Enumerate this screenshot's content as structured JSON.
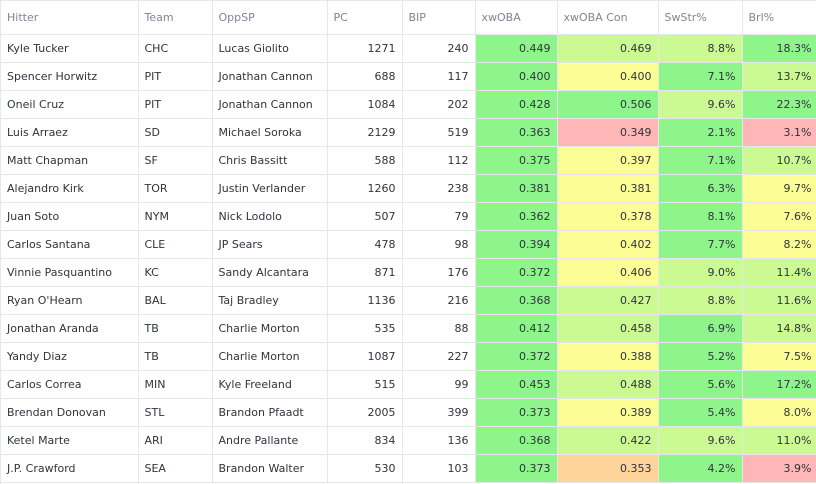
{
  "colors": {
    "green": "#8ef58b",
    "light_green": "#cafa91",
    "yellow": "#fdfd95",
    "orange": "#fed49a",
    "red": "#ffb6b6"
  },
  "table": {
    "columns": [
      "Hitter",
      "Team",
      "OppSP",
      "PC",
      "BIP",
      "xwOBA",
      "xwOBA Con",
      "SwStr%",
      "Brl%"
    ],
    "rows": [
      {
        "cells": [
          "Kyle Tucker",
          "CHC",
          "Lucas Giolito",
          "1271",
          "240",
          "0.449",
          "0.469",
          "8.8%",
          "18.3%"
        ],
        "colors": [
          "green",
          "light_green",
          "light_green",
          "green"
        ]
      },
      {
        "cells": [
          "Spencer Horwitz",
          "PIT",
          "Jonathan Cannon",
          "688",
          "117",
          "0.400",
          "0.400",
          "7.1%",
          "13.7%"
        ],
        "colors": [
          "green",
          "yellow",
          "green",
          "light_green"
        ]
      },
      {
        "cells": [
          "Oneil Cruz",
          "PIT",
          "Jonathan Cannon",
          "1084",
          "202",
          "0.428",
          "0.506",
          "9.6%",
          "22.3%"
        ],
        "colors": [
          "green",
          "green",
          "light_green",
          "green"
        ]
      },
      {
        "cells": [
          "Luis Arraez",
          "SD",
          "Michael Soroka",
          "2129",
          "519",
          "0.363",
          "0.349",
          "2.1%",
          "3.1%"
        ],
        "colors": [
          "green",
          "red",
          "green",
          "red"
        ]
      },
      {
        "cells": [
          "Matt Chapman",
          "SF",
          "Chris Bassitt",
          "588",
          "112",
          "0.375",
          "0.397",
          "7.1%",
          "10.7%"
        ],
        "colors": [
          "green",
          "yellow",
          "green",
          "light_green"
        ]
      },
      {
        "cells": [
          "Alejandro Kirk",
          "TOR",
          "Justin Verlander",
          "1260",
          "238",
          "0.381",
          "0.381",
          "6.3%",
          "9.7%"
        ],
        "colors": [
          "green",
          "yellow",
          "green",
          "yellow"
        ]
      },
      {
        "cells": [
          "Juan Soto",
          "NYM",
          "Nick Lodolo",
          "507",
          "79",
          "0.362",
          "0.378",
          "8.1%",
          "7.6%"
        ],
        "colors": [
          "green",
          "yellow",
          "green",
          "yellow"
        ]
      },
      {
        "cells": [
          "Carlos Santana",
          "CLE",
          "JP Sears",
          "478",
          "98",
          "0.394",
          "0.402",
          "7.7%",
          "8.2%"
        ],
        "colors": [
          "green",
          "yellow",
          "green",
          "yellow"
        ]
      },
      {
        "cells": [
          "Vinnie Pasquantino",
          "KC",
          "Sandy Alcantara",
          "871",
          "176",
          "0.372",
          "0.406",
          "9.0%",
          "11.4%"
        ],
        "colors": [
          "green",
          "yellow",
          "light_green",
          "light_green"
        ]
      },
      {
        "cells": [
          "Ryan O'Hearn",
          "BAL",
          "Taj Bradley",
          "1136",
          "216",
          "0.368",
          "0.427",
          "8.8%",
          "11.6%"
        ],
        "colors": [
          "green",
          "light_green",
          "light_green",
          "light_green"
        ]
      },
      {
        "cells": [
          "Jonathan Aranda",
          "TB",
          "Charlie Morton",
          "535",
          "88",
          "0.412",
          "0.458",
          "6.9%",
          "14.8%"
        ],
        "colors": [
          "green",
          "light_green",
          "green",
          "light_green"
        ]
      },
      {
        "cells": [
          "Yandy Diaz",
          "TB",
          "Charlie Morton",
          "1087",
          "227",
          "0.372",
          "0.388",
          "5.2%",
          "7.5%"
        ],
        "colors": [
          "green",
          "yellow",
          "green",
          "yellow"
        ]
      },
      {
        "cells": [
          "Carlos Correa",
          "MIN",
          "Kyle Freeland",
          "515",
          "99",
          "0.453",
          "0.488",
          "5.6%",
          "17.2%"
        ],
        "colors": [
          "green",
          "light_green",
          "green",
          "green"
        ]
      },
      {
        "cells": [
          "Brendan Donovan",
          "STL",
          "Brandon Pfaadt",
          "2005",
          "399",
          "0.373",
          "0.389",
          "5.4%",
          "8.0%"
        ],
        "colors": [
          "green",
          "yellow",
          "green",
          "yellow"
        ]
      },
      {
        "cells": [
          "Ketel Marte",
          "ARI",
          "Andre Pallante",
          "834",
          "136",
          "0.368",
          "0.422",
          "9.6%",
          "11.0%"
        ],
        "colors": [
          "green",
          "light_green",
          "light_green",
          "light_green"
        ]
      },
      {
        "cells": [
          "J.P. Crawford",
          "SEA",
          "Brandon Walter",
          "530",
          "103",
          "0.373",
          "0.353",
          "4.2%",
          "3.9%"
        ],
        "colors": [
          "green",
          "orange",
          "green",
          "red"
        ]
      }
    ]
  }
}
